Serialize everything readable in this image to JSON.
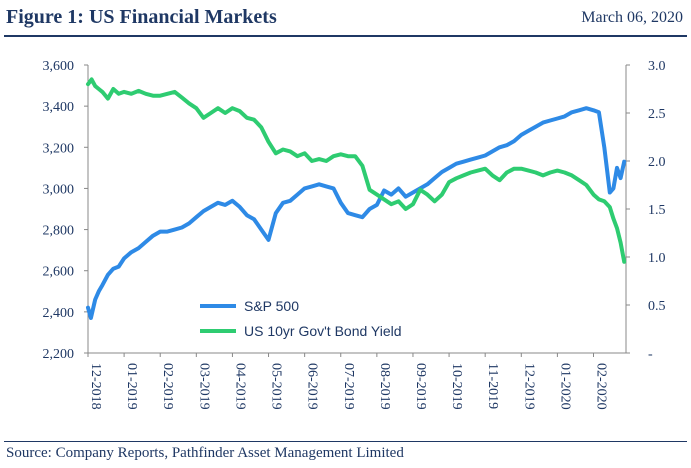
{
  "header": {
    "title": "Figure 1: US Financial Markets",
    "date": "March 06, 2020"
  },
  "footer": {
    "source": "Source: Company Reports, Pathfinder Asset Management Limited"
  },
  "colors": {
    "sp500": "#2e8ae6",
    "bond": "#2ecc71",
    "text": "#1f3864",
    "axis": "#888888"
  },
  "chart_data": {
    "type": "line",
    "y_left": {
      "ticks": [
        2200,
        2400,
        2600,
        2800,
        3000,
        3200,
        3400,
        3600
      ],
      "tick_labels": [
        "2,200",
        "2,400",
        "2,600",
        "2,800",
        "3,000",
        "3,200",
        "3,400",
        "3,600"
      ],
      "ylim": [
        2200,
        3600
      ]
    },
    "y_right": {
      "ticks": [
        0,
        0.5,
        1.0,
        1.5,
        2.0,
        2.5,
        3.0
      ],
      "tick_labels": [
        "-",
        "0.5",
        "1.0",
        "1.5",
        "2.0",
        "2.5",
        "3.0"
      ],
      "ylim": [
        0,
        3.0
      ]
    },
    "x_tick_labels": [
      "12-2018",
      "01-2019",
      "02-2019",
      "03-2019",
      "04-2019",
      "05-2019",
      "06-2019",
      "07-2019",
      "08-2019",
      "09-2019",
      "10-2019",
      "11-2019",
      "12-2019",
      "01-2020",
      "02-2020"
    ],
    "series": [
      {
        "name": "S&P 500",
        "axis": "left",
        "x": [
          0.0,
          0.08,
          0.2,
          0.3,
          0.4,
          0.55,
          0.7,
          0.85,
          1.0,
          1.2,
          1.4,
          1.6,
          1.8,
          2.0,
          2.2,
          2.4,
          2.6,
          2.8,
          3.0,
          3.2,
          3.4,
          3.6,
          3.8,
          4.0,
          4.2,
          4.4,
          4.6,
          4.8,
          5.0,
          5.2,
          5.4,
          5.6,
          5.8,
          6.0,
          6.2,
          6.4,
          6.6,
          6.8,
          7.0,
          7.2,
          7.4,
          7.6,
          7.8,
          8.0,
          8.2,
          8.4,
          8.6,
          8.8,
          9.0,
          9.2,
          9.4,
          9.6,
          9.8,
          10.0,
          10.2,
          10.4,
          10.6,
          10.8,
          11.0,
          11.2,
          11.4,
          11.6,
          11.8,
          12.0,
          12.2,
          12.4,
          12.6,
          12.8,
          13.0,
          13.2,
          13.4,
          13.6,
          13.8,
          14.0,
          14.15,
          14.3,
          14.45,
          14.55,
          14.65,
          14.75,
          14.85
        ],
        "values": [
          2420,
          2370,
          2460,
          2500,
          2530,
          2580,
          2610,
          2620,
          2660,
          2690,
          2710,
          2740,
          2770,
          2790,
          2790,
          2800,
          2810,
          2830,
          2860,
          2890,
          2910,
          2930,
          2920,
          2940,
          2910,
          2870,
          2850,
          2800,
          2750,
          2880,
          2930,
          2940,
          2970,
          3000,
          3010,
          3020,
          3010,
          3000,
          2930,
          2880,
          2870,
          2860,
          2900,
          2920,
          2990,
          2970,
          3000,
          2960,
          2980,
          3000,
          3020,
          3050,
          3080,
          3100,
          3120,
          3130,
          3140,
          3150,
          3160,
          3180,
          3200,
          3210,
          3230,
          3260,
          3280,
          3300,
          3320,
          3330,
          3340,
          3350,
          3370,
          3380,
          3390,
          3380,
          3370,
          3200,
          2980,
          3000,
          3100,
          3050,
          3130
        ]
      },
      {
        "name": "US 10yr Gov't Bond Yield",
        "axis": "right",
        "x": [
          0.0,
          0.1,
          0.2,
          0.3,
          0.4,
          0.55,
          0.7,
          0.85,
          1.0,
          1.2,
          1.4,
          1.6,
          1.8,
          2.0,
          2.2,
          2.4,
          2.6,
          2.8,
          3.0,
          3.2,
          3.4,
          3.6,
          3.8,
          4.0,
          4.2,
          4.4,
          4.6,
          4.8,
          5.0,
          5.2,
          5.4,
          5.6,
          5.8,
          6.0,
          6.2,
          6.4,
          6.6,
          6.8,
          7.0,
          7.2,
          7.4,
          7.6,
          7.8,
          8.0,
          8.2,
          8.4,
          8.6,
          8.8,
          9.0,
          9.2,
          9.4,
          9.6,
          9.8,
          10.0,
          10.2,
          10.4,
          10.6,
          10.8,
          11.0,
          11.2,
          11.4,
          11.6,
          11.8,
          12.0,
          12.2,
          12.4,
          12.6,
          12.8,
          13.0,
          13.2,
          13.4,
          13.6,
          13.8,
          14.0,
          14.15,
          14.3,
          14.45,
          14.55,
          14.65,
          14.75,
          14.85
        ],
        "values": [
          2.8,
          2.85,
          2.78,
          2.75,
          2.72,
          2.65,
          2.75,
          2.7,
          2.72,
          2.7,
          2.73,
          2.7,
          2.68,
          2.68,
          2.7,
          2.72,
          2.66,
          2.6,
          2.55,
          2.45,
          2.5,
          2.55,
          2.5,
          2.55,
          2.52,
          2.45,
          2.43,
          2.35,
          2.2,
          2.08,
          2.12,
          2.1,
          2.05,
          2.08,
          2.0,
          2.02,
          2.0,
          2.05,
          2.07,
          2.05,
          2.05,
          1.95,
          1.7,
          1.65,
          1.6,
          1.55,
          1.58,
          1.5,
          1.55,
          1.7,
          1.65,
          1.58,
          1.65,
          1.78,
          1.82,
          1.85,
          1.88,
          1.9,
          1.92,
          1.85,
          1.8,
          1.88,
          1.92,
          1.92,
          1.9,
          1.88,
          1.85,
          1.88,
          1.9,
          1.88,
          1.85,
          1.8,
          1.75,
          1.65,
          1.6,
          1.58,
          1.52,
          1.4,
          1.3,
          1.15,
          0.95
        ]
      }
    ],
    "legend_position": "lower-center",
    "grid": false
  }
}
